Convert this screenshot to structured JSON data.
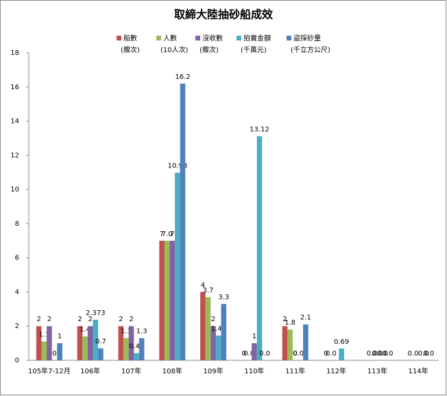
{
  "chart_data": {
    "type": "bar",
    "title": "取締大陸抽砂船成效",
    "categories": [
      "105年7-12月",
      "106年",
      "107年",
      "108年",
      "109年",
      "110年",
      "111年",
      "112年",
      "113年",
      "114年"
    ],
    "series": [
      {
        "name": "船數",
        "unit": "(艘次)",
        "color": "#c0504d",
        "values": [
          2,
          2,
          2,
          7,
          4,
          0,
          2,
          0,
          null,
          null
        ],
        "value_labels": [
          "2",
          "2",
          "2",
          "7",
          "4",
          "0",
          "2",
          "0",
          null,
          null
        ]
      },
      {
        "name": "人數",
        "unit": "(10人次)",
        "color": "#9bbb59",
        "values": [
          1.1,
          1.4,
          1.3,
          7,
          3.7,
          0,
          1.8,
          0,
          0,
          0
        ],
        "value_labels": [
          "1.1",
          "1.4",
          "1.3",
          "7.0",
          "3.7",
          "0.0",
          "1.8",
          "0.0",
          "0.0",
          "0.0"
        ]
      },
      {
        "name": "沒收數",
        "unit": "(艘次)",
        "color": "#8064a2",
        "values": [
          2,
          2,
          2,
          7,
          2,
          1,
          0,
          null,
          0,
          null
        ],
        "value_labels": [
          "2",
          "2",
          "2",
          "7",
          "2",
          "1",
          "0",
          null,
          "0.0",
          null
        ]
      },
      {
        "name": "拍賣金額",
        "unit": "(千萬元)",
        "color": "#4bacc6",
        "values": [
          0,
          2.373,
          0.42,
          10.98,
          1.45,
          13.12,
          0,
          0.69,
          0,
          0
        ],
        "value_labels": [
          "0",
          "2.373",
          "0.42",
          "10.98",
          "1.45",
          "13.12",
          "0.00",
          "0.69",
          "0.0",
          "0.0"
        ]
      },
      {
        "name": "盜採砂量",
        "unit": "(千立方公尺)",
        "color": "#4f81bd",
        "values": [
          1,
          0.7,
          1.3,
          16.2,
          3.3,
          0,
          2.1,
          null,
          0,
          0
        ],
        "value_labels": [
          "1",
          "0.7",
          "1.3",
          "16.2",
          "3.3",
          "0.0",
          "2.1",
          null,
          "0.0",
          "0.0"
        ]
      }
    ],
    "ylim": [
      0,
      18
    ],
    "yticks": [
      0,
      2,
      4,
      6,
      8,
      10,
      12,
      14,
      16,
      18
    ],
    "grid": false
  }
}
